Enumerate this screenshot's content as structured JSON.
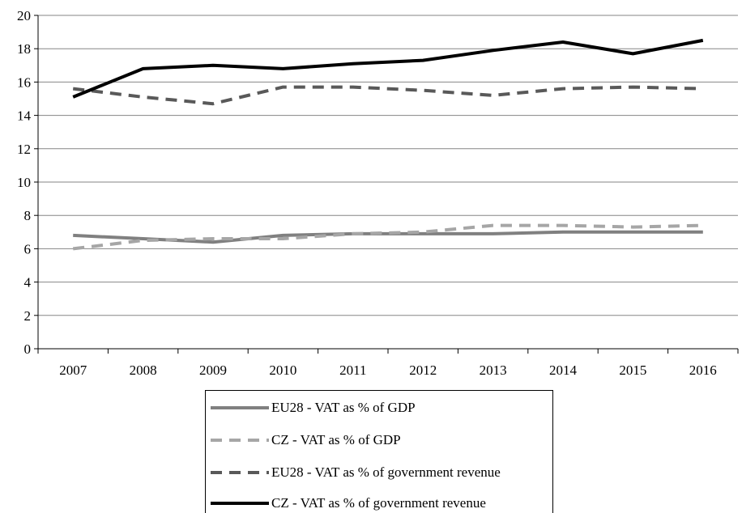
{
  "chart_data": {
    "type": "line",
    "categories": [
      "2007",
      "2008",
      "2009",
      "2010",
      "2011",
      "2012",
      "2013",
      "2014",
      "2015",
      "2016"
    ],
    "ylim": [
      0,
      20
    ],
    "yticks": [
      "0",
      "2",
      "4",
      "6",
      "8",
      "10",
      "12",
      "14",
      "16",
      "18",
      "20"
    ],
    "grid": true,
    "legend_position": "bottom",
    "series": [
      {
        "name": "EU28 - VAT as % of GDP",
        "color": "#808080",
        "style": "solid",
        "values": [
          6.8,
          6.6,
          6.4,
          6.8,
          6.9,
          6.9,
          6.9,
          7.0,
          7.0,
          7.0
        ]
      },
      {
        "name": "CZ - VAT as % of GDP",
        "color": "#a6a6a6",
        "style": "dashed",
        "values": [
          6.0,
          6.5,
          6.6,
          6.6,
          6.9,
          7.0,
          7.4,
          7.4,
          7.3,
          7.4
        ]
      },
      {
        "name": "EU28 - VAT as % of government revenue",
        "color": "#595959",
        "style": "dashed",
        "values": [
          15.6,
          15.1,
          14.7,
          15.7,
          15.7,
          15.5,
          15.2,
          15.6,
          15.7,
          15.6
        ]
      },
      {
        "name": "CZ - VAT as % of government revenue",
        "color": "#000000",
        "style": "solid",
        "values": [
          15.1,
          16.8,
          17.0,
          16.8,
          17.1,
          17.3,
          17.9,
          18.4,
          17.7,
          18.5
        ]
      }
    ]
  }
}
